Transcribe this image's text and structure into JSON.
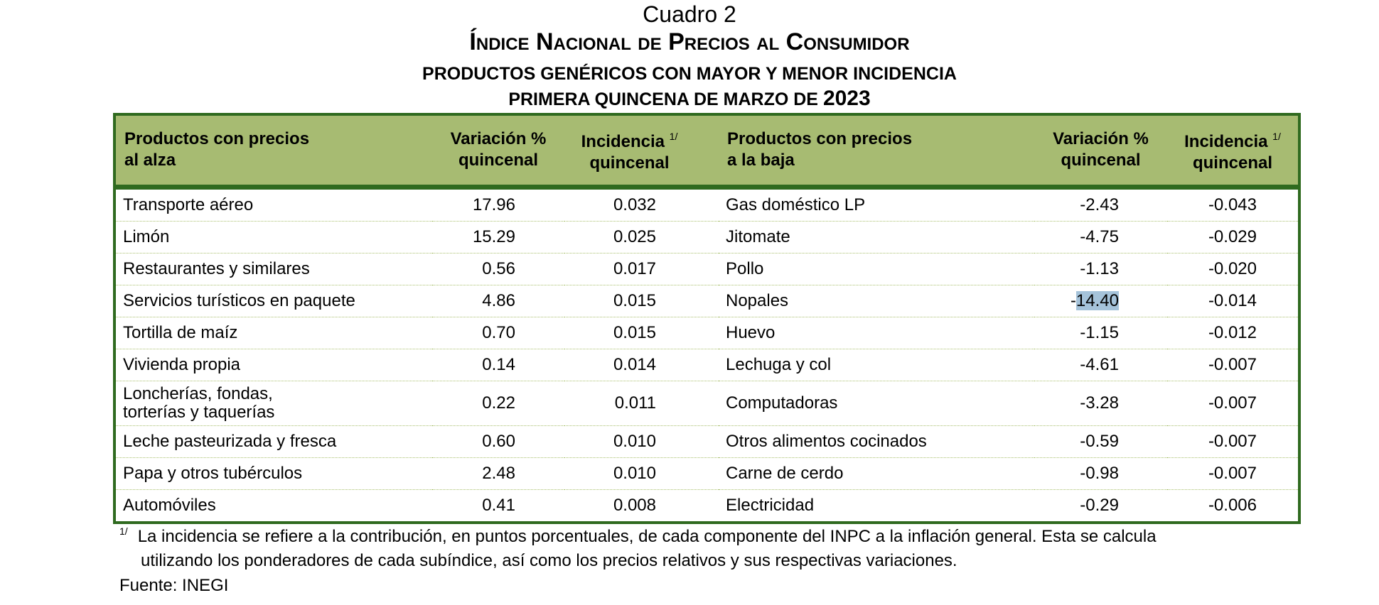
{
  "header": {
    "cuadro": "Cuadro 2",
    "title": "Índice Nacional de Precios al Consumidor",
    "subtitle": "PRODUCTOS GENÉRICOS CON MAYOR Y MENOR INCIDENCIA",
    "period": "PRIMERA QUINCENA DE MARZO DE",
    "year": "2023"
  },
  "columns": {
    "up_product": [
      "Productos con precios",
      "al alza"
    ],
    "variation": [
      "Variación %",
      "quincenal"
    ],
    "incidence": [
      "Incidencia",
      "quincenal"
    ],
    "down_product": [
      "Productos con precios",
      "a la baja"
    ],
    "footnote_mark": "1/"
  },
  "rows": [
    {
      "up": "Transporte aéreo",
      "up_var": "17.96",
      "up_inc": "0.032",
      "down": "Gas doméstico LP",
      "down_var": "-2.43",
      "down_inc": "-0.043"
    },
    {
      "up": "Limón",
      "up_var": "15.29",
      "up_inc": "0.025",
      "down": "Jitomate",
      "down_var": "-4.75",
      "down_inc": "-0.029"
    },
    {
      "up": "Restaurantes y similares",
      "up_var": "0.56",
      "up_inc": "0.017",
      "down": "Pollo",
      "down_var": "-1.13",
      "down_inc": "-0.020"
    },
    {
      "up": "Servicios turísticos en paquete",
      "up_var": "4.86",
      "up_inc": "0.015",
      "down": "Nopales",
      "down_var": "-14.40",
      "down_inc": "-0.014",
      "highlight": true
    },
    {
      "up": "Tortilla de maíz",
      "up_var": "0.70",
      "up_inc": "0.015",
      "down": "Huevo",
      "down_var": "-1.15",
      "down_inc": "-0.012"
    },
    {
      "up": "Vivienda propia",
      "up_var": "0.14",
      "up_inc": "0.014",
      "down": "Lechuga y col",
      "down_var": "-4.61",
      "down_inc": "-0.007"
    },
    {
      "up": "Loncherías, fondas, torterías y taquerías",
      "up_var": "0.22",
      "up_inc": "0.011",
      "down": "Computadoras",
      "down_var": "-3.28",
      "down_inc": "-0.007",
      "tall": true
    },
    {
      "up": "Leche pasteurizada y fresca",
      "up_var": "0.60",
      "up_inc": "0.010",
      "down": "Otros alimentos cocinados",
      "down_var": "-0.59",
      "down_inc": "-0.007"
    },
    {
      "up": "Papa y otros tubérculos",
      "up_var": "2.48",
      "up_inc": "0.010",
      "down": "Carne de cerdo",
      "down_var": "-0.98",
      "down_inc": "-0.007"
    },
    {
      "up": "Automóviles",
      "up_var": "0.41",
      "up_inc": "0.008",
      "down": "Electricidad",
      "down_var": "-0.29",
      "down_inc": "-0.006"
    }
  ],
  "footnote": {
    "mark": "1/",
    "line1": "La incidencia se refiere a la contribución, en puntos porcentuales, de cada componente del INPC a la inflación general. Esta se calcula",
    "line2": "utilizando los ponderadores de cada subíndice, así como los precios relativos y sus respectivas variaciones."
  },
  "source": "Fuente: INEGI",
  "colors": {
    "header_bg": "#a7bb72",
    "border": "#2f6a1f",
    "highlight": "#a5c3da"
  }
}
